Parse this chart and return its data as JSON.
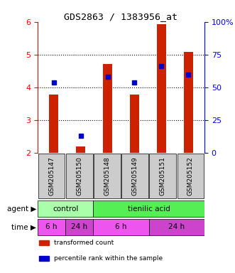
{
  "title": "GDS2863 / 1383956_at",
  "samples": [
    "GSM205147",
    "GSM205150",
    "GSM205148",
    "GSM205149",
    "GSM205151",
    "GSM205152"
  ],
  "bar_values": [
    3.78,
    2.18,
    4.72,
    3.78,
    5.92,
    5.08
  ],
  "percentile_values": [
    4.15,
    2.52,
    4.32,
    4.15,
    4.65,
    4.38
  ],
  "ylim_left": [
    2,
    6
  ],
  "ylim_right": [
    0,
    100
  ],
  "yticks_left": [
    2,
    3,
    4,
    5,
    6
  ],
  "yticks_right": [
    0,
    25,
    50,
    75,
    100
  ],
  "bar_color": "#cc2200",
  "dot_color": "#0000cc",
  "sample_bg": "#cccccc",
  "agents": [
    {
      "label": "control",
      "start": 0,
      "end": 2,
      "color": "#aaffaa"
    },
    {
      "label": "tienilic acid",
      "start": 2,
      "end": 6,
      "color": "#55ee55"
    }
  ],
  "times": [
    {
      "label": "6 h",
      "start": 0,
      "end": 1,
      "color": "#ee55ee"
    },
    {
      "label": "24 h",
      "start": 1,
      "end": 2,
      "color": "#cc44cc"
    },
    {
      "label": "6 h",
      "start": 2,
      "end": 4,
      "color": "#ee55ee"
    },
    {
      "label": "24 h",
      "start": 4,
      "end": 6,
      "color": "#cc44cc"
    }
  ],
  "legend_items": [
    {
      "label": "transformed count",
      "color": "#cc2200"
    },
    {
      "label": "percentile rank within the sample",
      "color": "#0000cc"
    }
  ],
  "side_labels": [
    "agent",
    "time"
  ],
  "grid_lines": [
    3,
    4,
    5
  ]
}
